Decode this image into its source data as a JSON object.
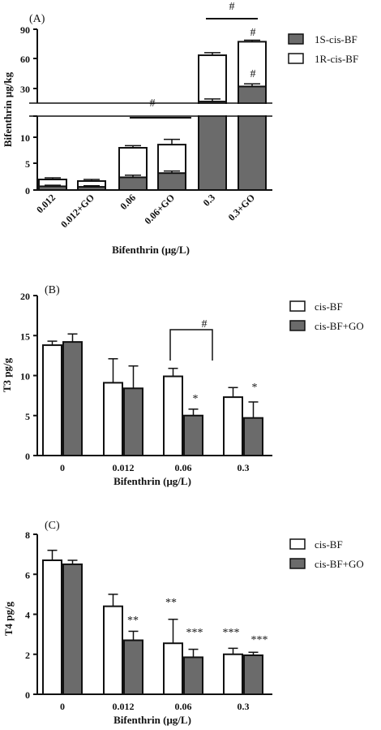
{
  "colors": {
    "dark": "#6b6b6b",
    "light": "#ffffff",
    "stroke": "#111111"
  },
  "chart_data": [
    {
      "type": "bar",
      "stacked": true,
      "panel_label": "(A)",
      "ylabel": "Bifenthrin μg/kg",
      "xlabel": "Bifenthrin (μg/L)",
      "y_ticks_lower": [
        "0",
        "5",
        "10"
      ],
      "y_ticks_upper": [
        "30",
        "60",
        "90"
      ],
      "ylim_lower": [
        0,
        14
      ],
      "ylim_upper": [
        19,
        90
      ],
      "categories": [
        "0.012",
        "0.012+GO",
        "0.06",
        "0.06+GO",
        "0.3",
        "0.3+GO"
      ],
      "series": [
        {
          "name": "1S-cis-BF",
          "values": [
            0.7,
            0.6,
            2.4,
            3.2,
            20.5,
            35
          ],
          "errors": [
            0.2,
            0.2,
            0.4,
            0.4,
            2.5,
            2.5
          ]
        },
        {
          "name": "1R-cis-BF",
          "values": [
            1.3,
            1.1,
            5.6,
            5.4,
            44.5,
            43
          ],
          "errors": [
            0.3,
            0.3,
            0.4,
            1.0,
            2.5,
            1.5
          ]
        }
      ],
      "legend": [
        "1S-cis-BF",
        "1R-cis-BF"
      ],
      "annotations": [
        "#",
        "#",
        "#",
        "#"
      ]
    },
    {
      "type": "bar",
      "panel_label": "(B)",
      "ylabel": "T3 pg/g",
      "xlabel": "Bifenthrin (μg/L)",
      "y_ticks": [
        "0",
        "5",
        "10",
        "15",
        "20"
      ],
      "ylim": [
        0,
        20
      ],
      "categories": [
        "0",
        "0.012",
        "0.06",
        "0.3"
      ],
      "series": [
        {
          "name": "cis-BF",
          "values": [
            13.8,
            9.1,
            9.9,
            7.3
          ],
          "errors": [
            0.5,
            3.0,
            1.0,
            1.2
          ]
        },
        {
          "name": "cis-BF+GO",
          "values": [
            14.2,
            8.4,
            5.0,
            4.7
          ],
          "errors": [
            1.0,
            2.8,
            0.8,
            2.0
          ]
        }
      ],
      "legend": [
        "cis-BF",
        "cis-BF+GO"
      ],
      "annotations": [
        "#",
        "*",
        "*"
      ]
    },
    {
      "type": "bar",
      "panel_label": "(C)",
      "ylabel": "T4 pg/g",
      "xlabel": "Bifenthrin (μg/L)",
      "y_ticks": [
        "0",
        "2",
        "4",
        "6",
        "8"
      ],
      "ylim": [
        0,
        8
      ],
      "categories": [
        "0",
        "0.012",
        "0.06",
        "0.3"
      ],
      "series": [
        {
          "name": "cis-BF",
          "values": [
            6.7,
            4.4,
            2.55,
            2.0
          ],
          "errors": [
            0.5,
            0.6,
            1.2,
            0.3
          ]
        },
        {
          "name": "cis-BF+GO",
          "values": [
            6.5,
            2.7,
            1.85,
            1.95
          ],
          "errors": [
            0.2,
            0.45,
            0.4,
            0.15
          ]
        }
      ],
      "legend": [
        "cis-BF",
        "cis-BF+GO"
      ],
      "annotations": [
        "**",
        "**",
        "***",
        "***",
        "***"
      ]
    }
  ]
}
